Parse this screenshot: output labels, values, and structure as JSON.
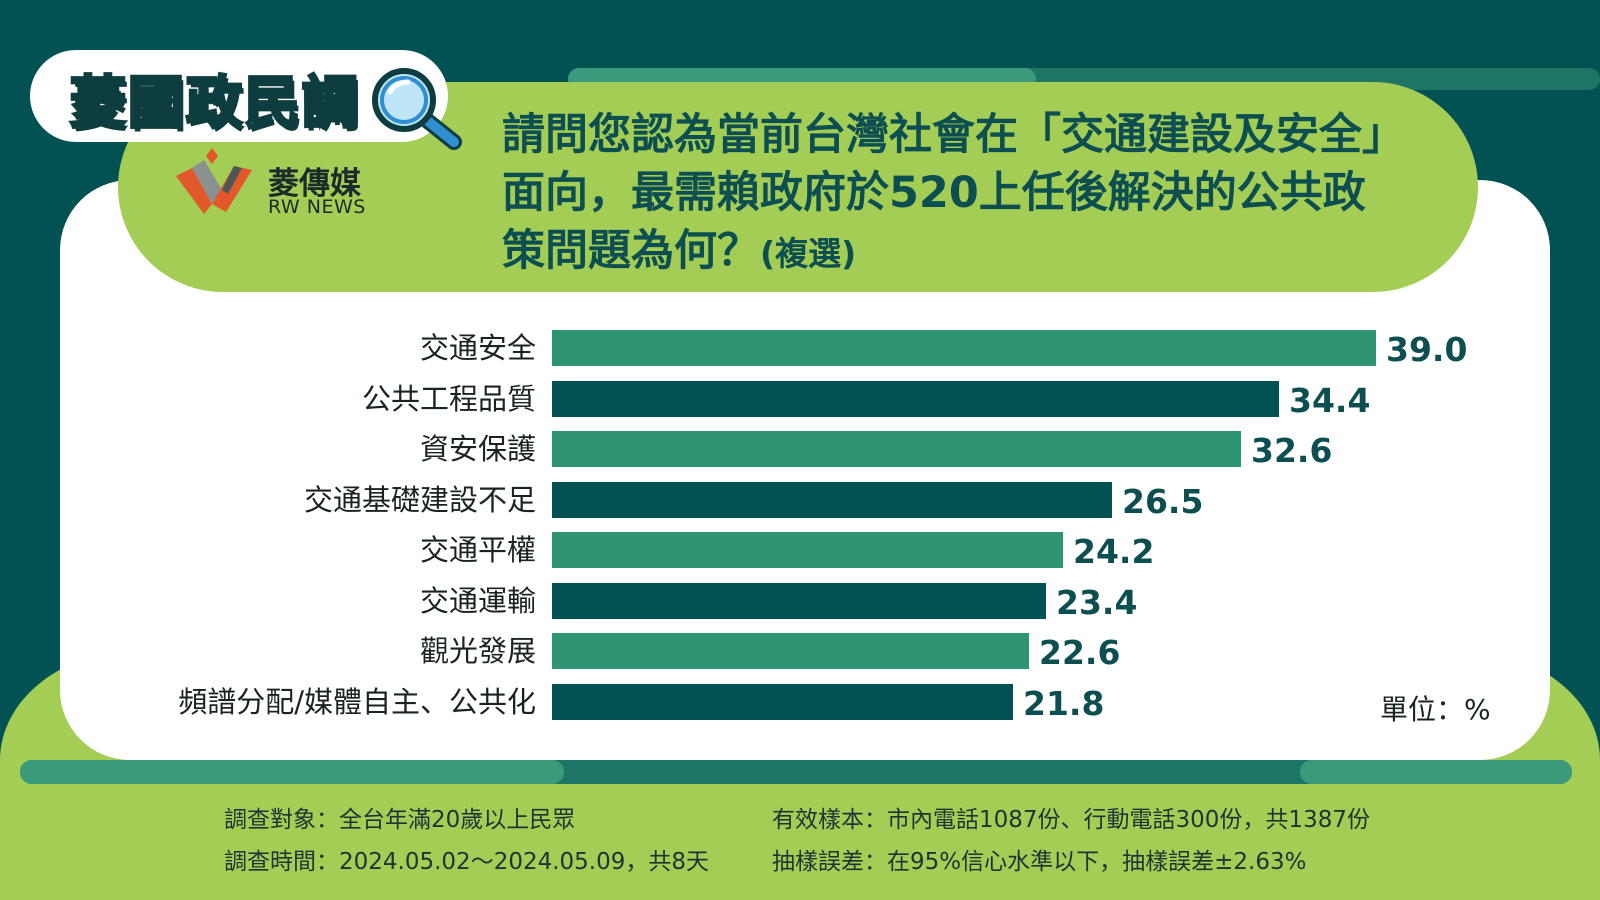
{
  "brand": {
    "title": "菱國政民調",
    "logo_name": "菱傳媒",
    "logo_sub": "RW NEWS",
    "magnifier_icon": "magnifier-icon"
  },
  "question": {
    "text": "請問您認為當前台灣社會在「交通建設及安全」面向，最需賴政府於520上任後解決的公共政策問題為何？",
    "suffix": "(複選)"
  },
  "chart_data": {
    "type": "bar",
    "orientation": "horizontal",
    "categories": [
      "交通安全",
      "公共工程品質",
      "資安保護",
      "交通基礎建設不足",
      "交通平權",
      "交通運輸",
      "觀光發展",
      "頻譜分配/媒體自主、公共化"
    ],
    "values": [
      39.0,
      34.4,
      32.6,
      26.5,
      24.2,
      23.4,
      22.6,
      21.8
    ],
    "value_labels": [
      "39.0",
      "34.4",
      "32.6",
      "26.5",
      "24.2",
      "23.4",
      "22.6",
      "21.8"
    ],
    "unit_label": "單位：%",
    "bar_colors": [
      "#2f9474",
      "#035253"
    ],
    "xlim": [
      0,
      39
    ]
  },
  "footnotes": {
    "target": "調查對象：全台年滿20歲以上民眾",
    "period": "調查時間：2024.05.02～2024.05.09，共8天",
    "sample": "有效樣本：市內電話1087份、行動電話300份，共1387份",
    "error": "抽樣誤差：在95%信心水準以下，抽樣誤差±2.63%"
  },
  "colors": {
    "background": "#035253",
    "accent_green": "#a3cd55",
    "bar_light": "#2f9474",
    "bar_dark": "#035253"
  }
}
